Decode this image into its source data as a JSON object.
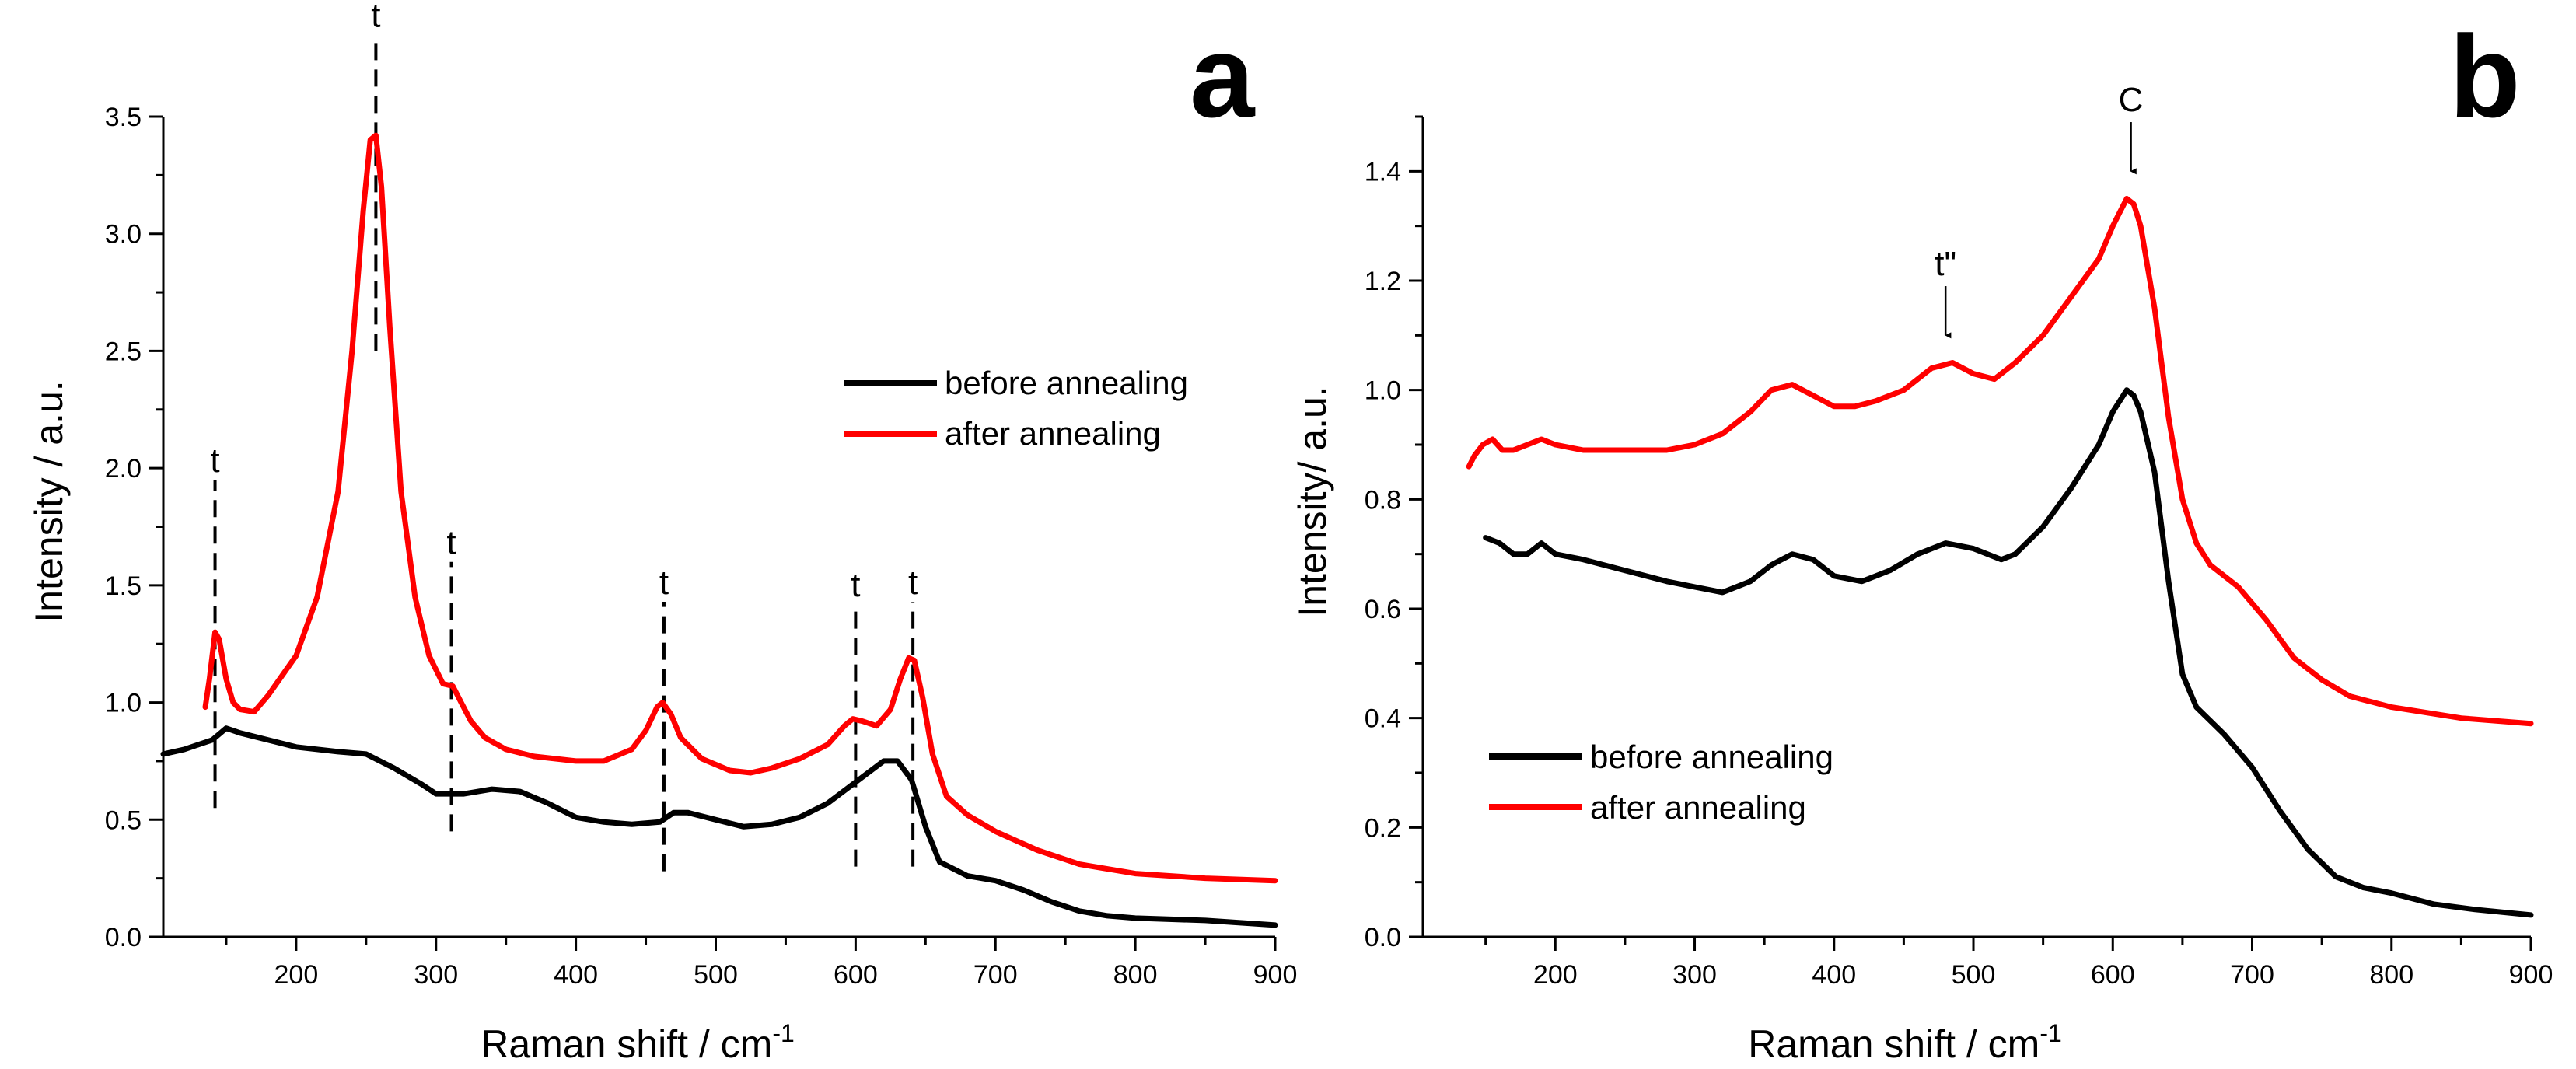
{
  "chart_data": [
    {
      "type": "line",
      "panel_label": "a",
      "xlabel": "Raman shift / cm",
      "xlabel_superscript": "-1",
      "ylabel": "Intensity / a.u.",
      "xlim": [
        105,
        900
      ],
      "ylim": [
        0,
        3.5
      ],
      "xticks": [
        200,
        300,
        400,
        500,
        600,
        700,
        800,
        900
      ],
      "yticks": [
        0.0,
        0.5,
        1.0,
        1.5,
        2.0,
        2.5,
        3.0,
        3.5
      ],
      "xtick_labels": [
        "200",
        "300",
        "400",
        "500",
        "600",
        "700",
        "800",
        "900"
      ],
      "ytick_labels": [
        "0.0",
        "0.5",
        "1.0",
        "1.5",
        "2.0",
        "2.5",
        "3.0",
        "3.5"
      ],
      "legend_position": "right",
      "series": [
        {
          "name": "before annealing",
          "color": "#000000",
          "x": [
            105,
            120,
            130,
            140,
            150,
            160,
            180,
            200,
            230,
            250,
            270,
            290,
            300,
            320,
            340,
            360,
            380,
            400,
            420,
            440,
            460,
            470,
            480,
            500,
            520,
            540,
            560,
            580,
            600,
            620,
            630,
            640,
            650,
            660,
            680,
            700,
            720,
            740,
            760,
            780,
            800,
            850,
            900
          ],
          "y": [
            0.78,
            0.8,
            0.82,
            0.84,
            0.89,
            0.87,
            0.84,
            0.81,
            0.79,
            0.78,
            0.72,
            0.65,
            0.61,
            0.61,
            0.63,
            0.62,
            0.57,
            0.51,
            0.49,
            0.48,
            0.49,
            0.53,
            0.53,
            0.5,
            0.47,
            0.48,
            0.51,
            0.57,
            0.66,
            0.75,
            0.75,
            0.67,
            0.47,
            0.32,
            0.26,
            0.24,
            0.2,
            0.15,
            0.11,
            0.09,
            0.08,
            0.07,
            0.05
          ]
        },
        {
          "name": "after annealing",
          "color": "#ff0000",
          "x": [
            135,
            138,
            142,
            145,
            150,
            155,
            160,
            170,
            180,
            200,
            215,
            230,
            240,
            248,
            253,
            257,
            261,
            267,
            275,
            285,
            295,
            305,
            312,
            318,
            325,
            335,
            350,
            370,
            400,
            420,
            440,
            450,
            458,
            462,
            468,
            475,
            490,
            510,
            525,
            540,
            560,
            580,
            592,
            598,
            605,
            615,
            625,
            632,
            638,
            642,
            648,
            655,
            665,
            680,
            700,
            730,
            760,
            800,
            850,
            900
          ],
          "y": [
            0.98,
            1.1,
            1.3,
            1.27,
            1.1,
            1.0,
            0.97,
            0.96,
            1.03,
            1.2,
            1.45,
            1.9,
            2.5,
            3.1,
            3.4,
            3.42,
            3.2,
            2.6,
            1.9,
            1.45,
            1.2,
            1.08,
            1.07,
            1.0,
            0.92,
            0.85,
            0.8,
            0.77,
            0.75,
            0.75,
            0.8,
            0.88,
            0.98,
            1.0,
            0.95,
            0.85,
            0.76,
            0.71,
            0.7,
            0.72,
            0.76,
            0.82,
            0.9,
            0.93,
            0.92,
            0.9,
            0.97,
            1.1,
            1.19,
            1.18,
            1.02,
            0.78,
            0.6,
            0.52,
            0.45,
            0.37,
            0.31,
            0.27,
            0.25,
            0.24
          ]
        }
      ],
      "annotations": [
        {
          "text": "t",
          "x": 142,
          "y_from": 0.55,
          "y_to": 1.95,
          "style": "dashed-line"
        },
        {
          "text": "t",
          "x": 257,
          "y_from": 2.5,
          "y_to": 3.85,
          "style": "dashed-line"
        },
        {
          "text": "t",
          "x": 311,
          "y_from": 0.45,
          "y_to": 1.6,
          "style": "dashed-line"
        },
        {
          "text": "t",
          "x": 463,
          "y_from": 0.28,
          "y_to": 1.43,
          "style": "dashed-line"
        },
        {
          "text": "t",
          "x": 600,
          "y_from": 0.3,
          "y_to": 1.42,
          "style": "dashed-line"
        },
        {
          "text": "t",
          "x": 641,
          "y_from": 0.3,
          "y_to": 1.43,
          "style": "dashed-line"
        }
      ]
    },
    {
      "type": "line",
      "panel_label": "b",
      "xlabel": "Raman shift / cm",
      "xlabel_superscript": "-1",
      "ylabel": "Intensity/ a.u.",
      "xlim": [
        105,
        900
      ],
      "ylim": [
        0,
        1.5
      ],
      "xticks": [
        200,
        300,
        400,
        500,
        600,
        700,
        800,
        900
      ],
      "yticks": [
        0.0,
        0.2,
        0.4,
        0.6,
        0.8,
        1.0,
        1.2,
        1.4
      ],
      "xtick_labels": [
        "200",
        "300",
        "400",
        "500",
        "600",
        "700",
        "800",
        "900"
      ],
      "ytick_labels": [
        "0.0",
        "0.2",
        "0.4",
        "0.6",
        "0.8",
        "1.0",
        "1.2",
        "1.4"
      ],
      "legend_position": "bottom-left",
      "series": [
        {
          "name": "before annealing",
          "color": "#000000",
          "x": [
            150,
            160,
            170,
            180,
            190,
            200,
            220,
            250,
            280,
            300,
            320,
            340,
            355,
            370,
            385,
            400,
            420,
            440,
            460,
            480,
            500,
            520,
            530,
            550,
            570,
            590,
            600,
            610,
            615,
            620,
            630,
            640,
            650,
            660,
            680,
            700,
            720,
            740,
            760,
            780,
            800,
            830,
            860,
            900
          ],
          "y": [
            0.73,
            0.72,
            0.7,
            0.7,
            0.72,
            0.7,
            0.69,
            0.67,
            0.65,
            0.64,
            0.63,
            0.65,
            0.68,
            0.7,
            0.69,
            0.66,
            0.65,
            0.67,
            0.7,
            0.72,
            0.71,
            0.69,
            0.7,
            0.75,
            0.82,
            0.9,
            0.96,
            1.0,
            0.99,
            0.96,
            0.85,
            0.65,
            0.48,
            0.42,
            0.37,
            0.31,
            0.23,
            0.16,
            0.11,
            0.09,
            0.08,
            0.06,
            0.05,
            0.04
          ]
        },
        {
          "name": "after annealing",
          "color": "#ff0000",
          "x": [
            138,
            142,
            148,
            155,
            162,
            170,
            180,
            190,
            200,
            220,
            250,
            280,
            300,
            320,
            340,
            355,
            370,
            385,
            400,
            415,
            430,
            450,
            470,
            485,
            500,
            515,
            530,
            550,
            570,
            590,
            600,
            610,
            615,
            620,
            630,
            640,
            650,
            660,
            670,
            690,
            710,
            730,
            750,
            770,
            800,
            850,
            900
          ],
          "y": [
            0.86,
            0.88,
            0.9,
            0.91,
            0.89,
            0.89,
            0.9,
            0.91,
            0.9,
            0.89,
            0.89,
            0.89,
            0.9,
            0.92,
            0.96,
            1.0,
            1.01,
            0.99,
            0.97,
            0.97,
            0.98,
            1.0,
            1.04,
            1.05,
            1.03,
            1.02,
            1.05,
            1.1,
            1.17,
            1.24,
            1.3,
            1.35,
            1.34,
            1.3,
            1.15,
            0.95,
            0.8,
            0.72,
            0.68,
            0.64,
            0.58,
            0.51,
            0.47,
            0.44,
            0.42,
            0.4,
            0.39
          ]
        }
      ],
      "annotations": [
        {
          "text": "C",
          "x": 613,
          "y_from": 1.49,
          "y_to": 1.4,
          "style": "arrow"
        },
        {
          "text": "t\"",
          "x": 480,
          "y_from": 1.19,
          "y_to": 1.1,
          "style": "arrow"
        }
      ]
    }
  ]
}
